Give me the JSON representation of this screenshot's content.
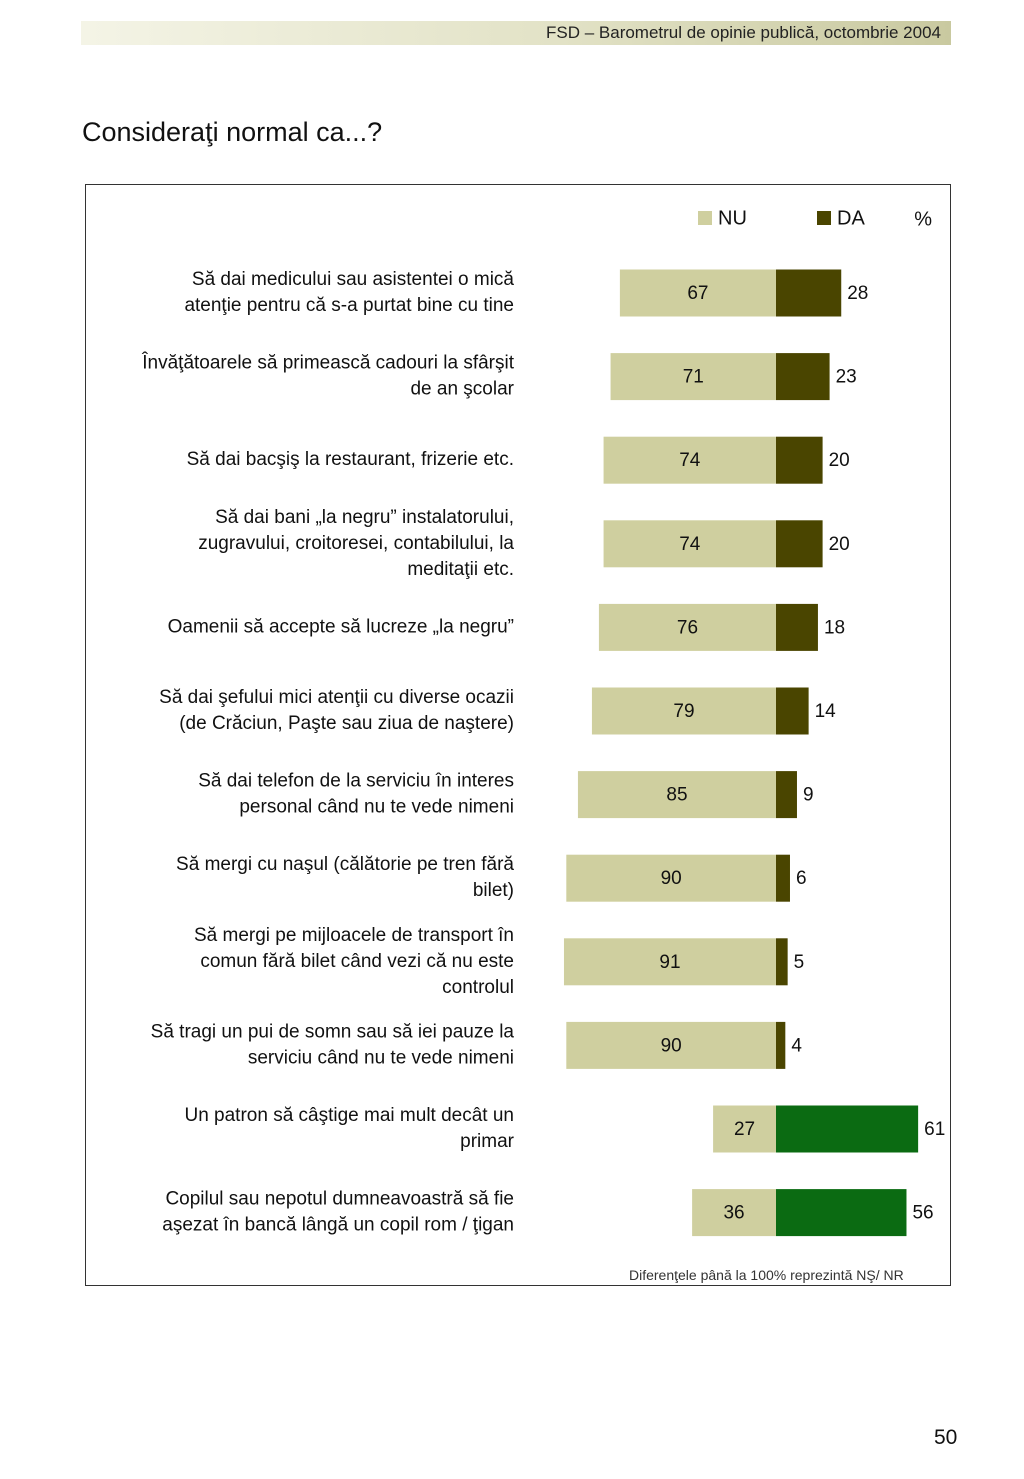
{
  "header": {
    "text": "FSD  –  Barometrul de opinie publică, octombrie 2004"
  },
  "page_title": "Consideraţi normal ca...?",
  "footnote": "Diferenţele până la 100% reprezintă NŞ/ NR",
  "page_number": "50",
  "colors": {
    "nu": "#cfcf9f",
    "da": "#4a4500",
    "da_highlight": "#0b6b12"
  },
  "chart_data": {
    "type": "bar",
    "orientation": "horizontal-diverging",
    "unit_label": "%",
    "legend": {
      "placement": "top-right",
      "entries": [
        "NU",
        "DA"
      ]
    },
    "grid": false,
    "categories": [
      [
        "Să dai medicului sau asistentei o mică",
        "atenţie pentru că s-a purtat bine cu tine"
      ],
      [
        "Învăţătoarele să primească cadouri la sfârşit",
        "de an şcolar"
      ],
      [
        "Să dai bacşiş la restaurant, frizerie etc."
      ],
      [
        "Să dai bani „la negru” instalatorului,",
        "zugravului, croitoresei, contabilului, la",
        "meditaţii etc."
      ],
      [
        "Oamenii să accepte să lucreze „la negru”"
      ],
      [
        "Să dai şefului mici atenţii cu diverse ocazii",
        "(de Crăciun, Paşte sau ziua de naştere)"
      ],
      [
        "Să dai telefon de la serviciu în interes",
        "personal când nu te vede nimeni"
      ],
      [
        "Să mergi cu naşul (călătorie pe tren fără",
        "bilet)"
      ],
      [
        "Să mergi pe mijloacele de transport în",
        "comun fără bilet când vezi că nu este",
        "controlul"
      ],
      [
        "Să tragi un pui de somn sau să iei pauze la",
        "serviciu când nu te vede nimeni"
      ],
      [
        "Un patron să câştige mai mult decât un",
        "primar"
      ],
      [
        "Copilul sau nepotul dumneavoastră să fie",
        "aşezat în bancă lângă un copil rom / ţigan"
      ]
    ],
    "series": [
      {
        "name": "NU",
        "values": [
          67,
          71,
          74,
          74,
          76,
          79,
          85,
          90,
          91,
          90,
          27,
          36
        ]
      },
      {
        "name": "DA",
        "values": [
          28,
          23,
          20,
          20,
          18,
          14,
          9,
          6,
          5,
          4,
          61,
          56
        ]
      }
    ],
    "highlighted_da_rows": [
      10,
      11
    ]
  }
}
